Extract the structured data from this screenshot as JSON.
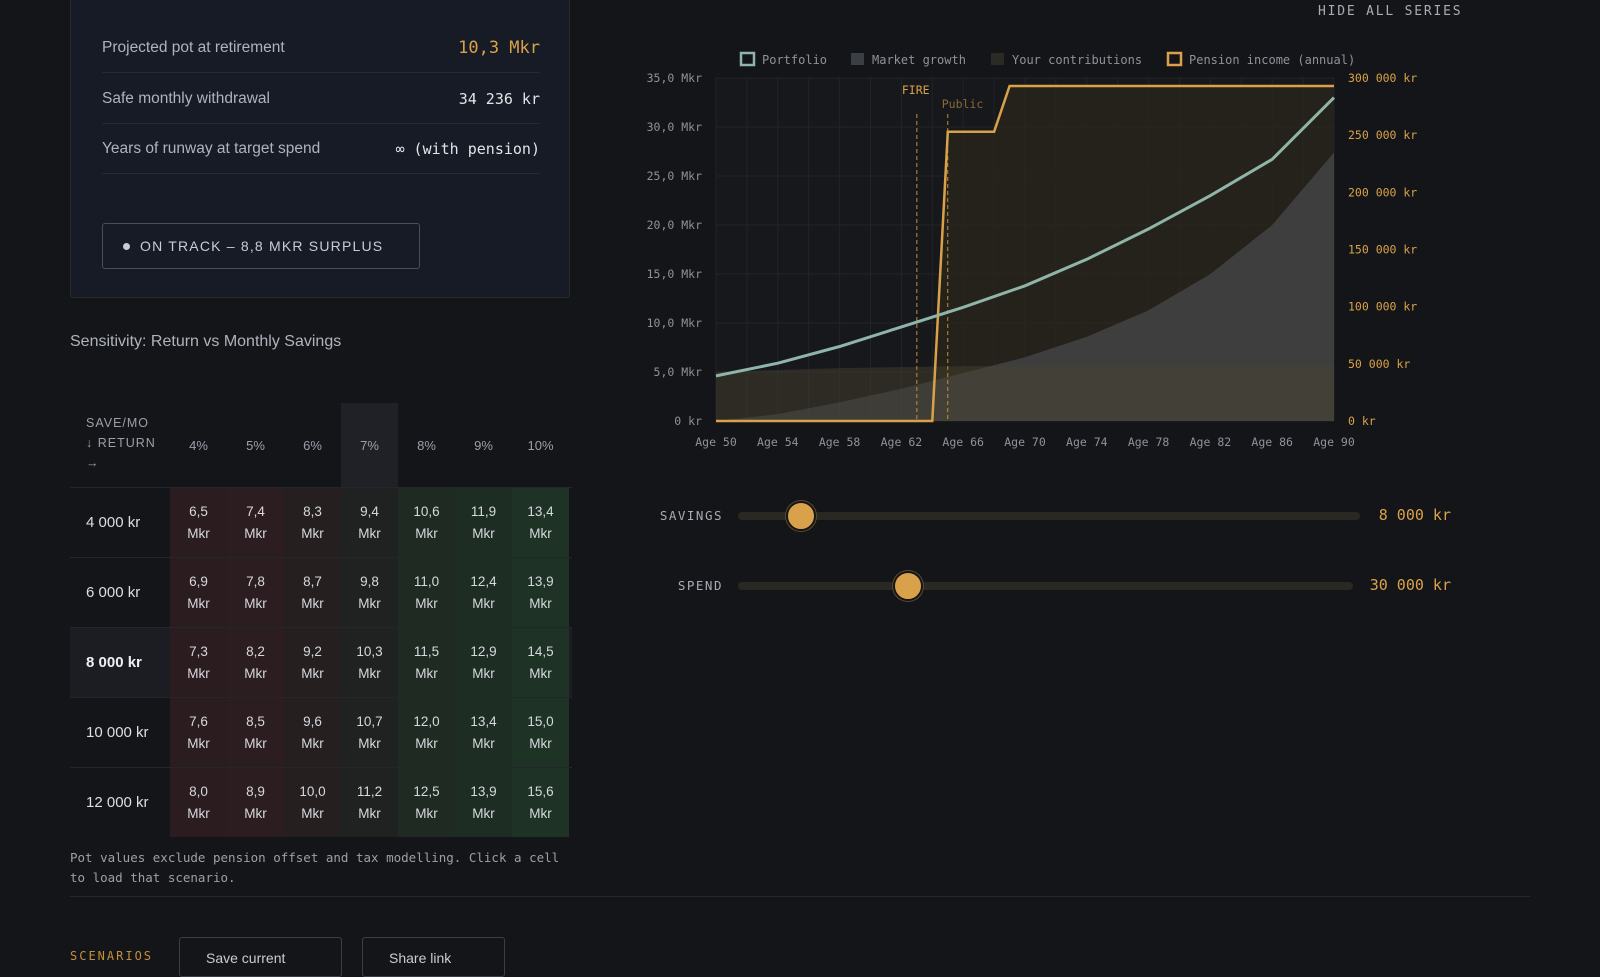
{
  "summary": {
    "rows": [
      {
        "label": "Projected pot at retirement",
        "value": "10,3 Mkr"
      },
      {
        "label": "Safe monthly withdrawal",
        "value": "34 236 kr"
      },
      {
        "label": "Years of runway at target spend",
        "value": "∞ (with pension)"
      }
    ],
    "status": "ON TRACK – 8,8 MKR SURPLUS"
  },
  "sensitivity": {
    "title": "Sensitivity: Return vs Monthly Savings",
    "corner": [
      "SAVE/MO",
      "↓ RETURN",
      "→"
    ],
    "returns": [
      "4%",
      "5%",
      "6%",
      "7%",
      "8%",
      "9%",
      "10%"
    ],
    "selected_return": 3,
    "selected_row": 2,
    "rows": [
      {
        "label": "4 000 kr",
        "values": [
          "6,5",
          "7,4",
          "8,3",
          "9,4",
          "10,6",
          "11,9",
          "13,4"
        ]
      },
      {
        "label": "6 000 kr",
        "values": [
          "6,9",
          "7,8",
          "8,7",
          "9,8",
          "11,0",
          "12,4",
          "13,9"
        ]
      },
      {
        "label": "8 000 kr",
        "values": [
          "7,3",
          "8,2",
          "9,2",
          "10,3",
          "11,5",
          "12,9",
          "14,5"
        ]
      },
      {
        "label": "10 000 kr",
        "values": [
          "7,6",
          "8,5",
          "9,6",
          "10,7",
          "12,0",
          "13,4",
          "15,0"
        ]
      },
      {
        "label": "12 000 kr",
        "values": [
          "8,0",
          "8,9",
          "10,0",
          "11,2",
          "12,5",
          "13,9",
          "15,6"
        ]
      }
    ],
    "unit": "Mkr",
    "note": "Pot values exclude pension offset and tax modelling. Click a cell to load that scenario."
  },
  "footer": {
    "scenarios_label": "SCENARIOS",
    "buttons": [
      "Save current",
      "Share link"
    ]
  },
  "chart": {
    "hide_all": "HIDE ALL SERIES",
    "legend": [
      {
        "name": "Portfolio",
        "color": "#8fb5a9",
        "style": "outline"
      },
      {
        "name": "Market growth",
        "color": "#3b3f44",
        "style": "solid"
      },
      {
        "name": "Your contributions",
        "color": "#2b2a24",
        "style": "solid"
      },
      {
        "name": "Pension income (annual)",
        "color": "#d9a24a",
        "style": "outline"
      }
    ],
    "markers": [
      {
        "label": "FIRE",
        "age": 63
      },
      {
        "label": "Public",
        "age": 65
      }
    ]
  },
  "chart_data": {
    "type": "line",
    "x": [
      50,
      54,
      58,
      62,
      66,
      70,
      74,
      78,
      82,
      86,
      90
    ],
    "x_tick_labels": [
      "Age 50",
      "Age 54",
      "Age 58",
      "Age 62",
      "Age 66",
      "Age 70",
      "Age 74",
      "Age 78",
      "Age 82",
      "Age 86",
      "Age 90"
    ],
    "xlim": [
      50,
      90
    ],
    "ylim_left": [
      0,
      35
    ],
    "y_left_ticks": [
      "0 kr",
      "5,0 Mkr",
      "10,0 Mkr",
      "15,0 Mkr",
      "20,0 Mkr",
      "25,0 Mkr",
      "30,0 Mkr",
      "35,0 Mkr"
    ],
    "ylim_right": [
      0,
      300000
    ],
    "y_right_ticks": [
      "0 kr",
      "50 000 kr",
      "100 000 kr",
      "150 000 kr",
      "200 000 kr",
      "250 000 kr",
      "300 000 kr"
    ],
    "series": [
      {
        "name": "Portfolio",
        "axis": "left",
        "values": [
          4.6,
          5.9,
          7.6,
          9.6,
          11.6,
          13.8,
          16.5,
          19.6,
          23.0,
          26.7,
          33.0
        ]
      },
      {
        "name": "Market growth",
        "axis": "left",
        "values": [
          0.0,
          0.7,
          1.9,
          3.3,
          4.9,
          6.5,
          8.6,
          11.3,
          15.0,
          20.0,
          27.4
        ]
      },
      {
        "name": "Your contributions",
        "axis": "left",
        "values": [
          5.0,
          5.2,
          5.4,
          5.5,
          5.6,
          5.6,
          5.6,
          5.6,
          5.6,
          5.6,
          5.6
        ]
      },
      {
        "name": "Pension income (annual)",
        "axis": "right",
        "steps": [
          [
            50,
            0
          ],
          [
            64,
            0
          ],
          [
            65,
            253000
          ],
          [
            68,
            253000
          ],
          [
            69,
            293000
          ],
          [
            90,
            293000
          ]
        ]
      }
    ],
    "grid": true,
    "legend_position": "top"
  },
  "sliders": [
    {
      "label": "SAVINGS",
      "value": "8 000 kr",
      "fraction": 0.1
    },
    {
      "label": "SPEND",
      "value": "30 000 kr",
      "fraction": 0.28
    }
  ]
}
